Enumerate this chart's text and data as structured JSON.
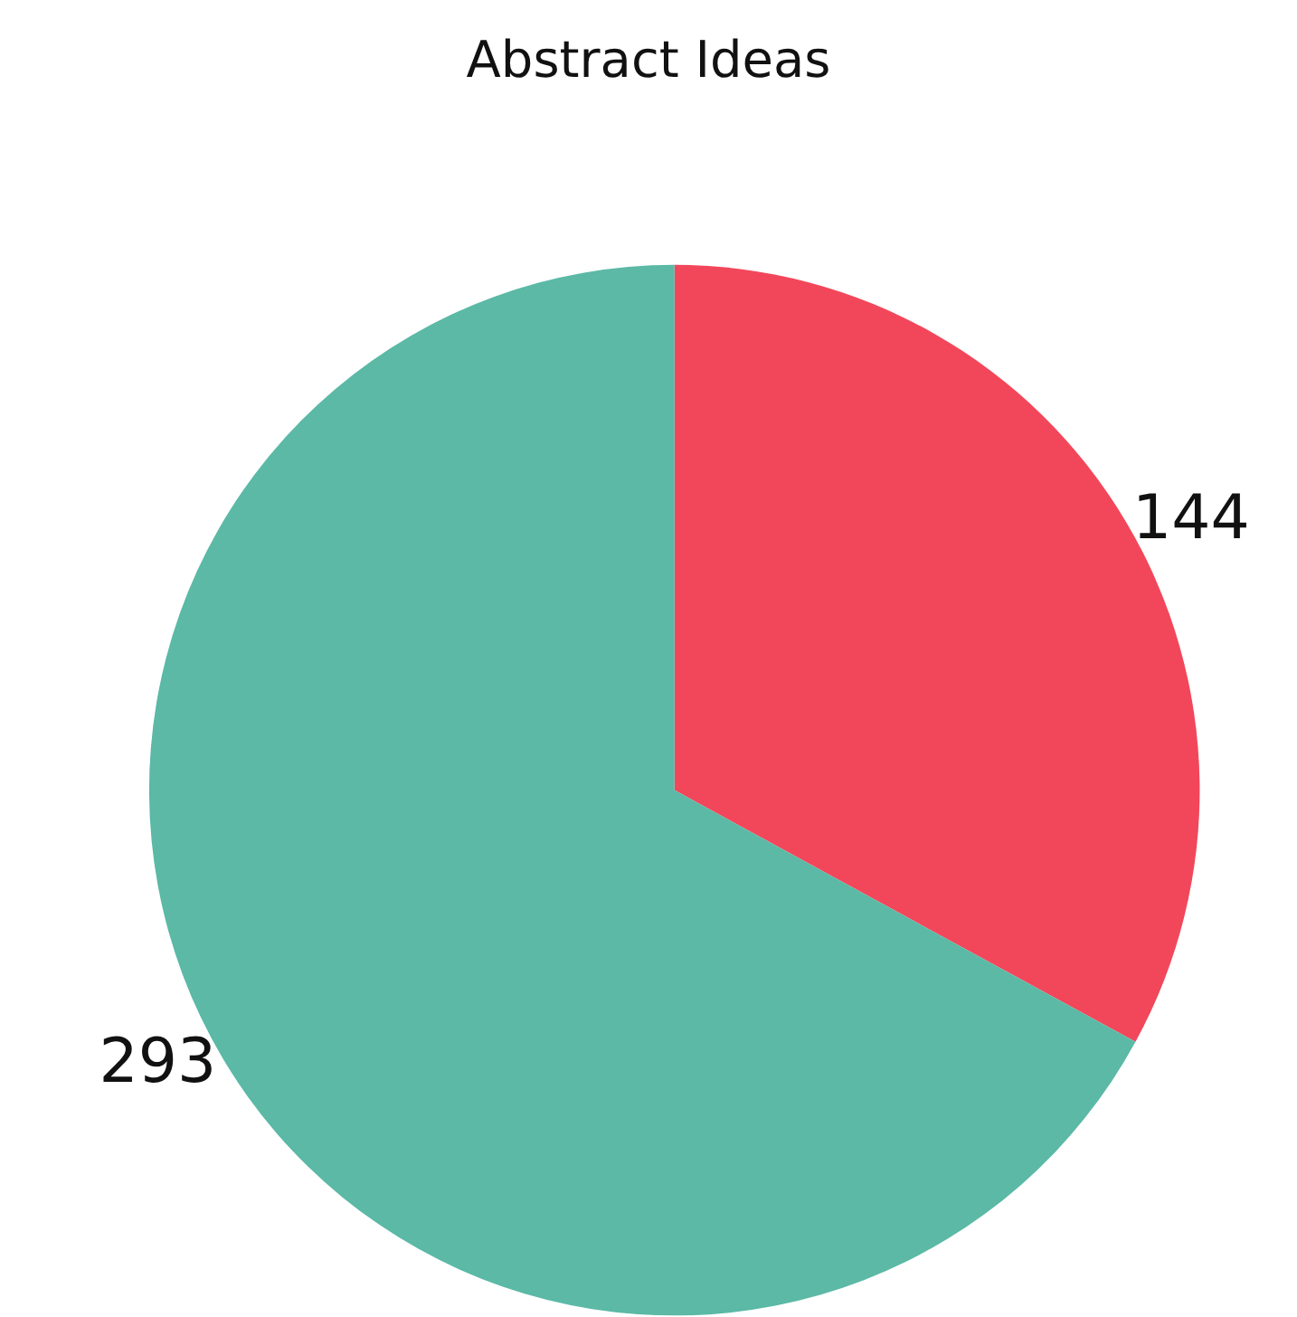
{
  "chart_data": {
    "type": "pie",
    "title": "Abstract Ideas",
    "categories": [
      null,
      null
    ],
    "values": [
      144,
      293
    ],
    "colors": [
      "#f2475a",
      "#5bb9a6"
    ],
    "data_labels": true
  }
}
